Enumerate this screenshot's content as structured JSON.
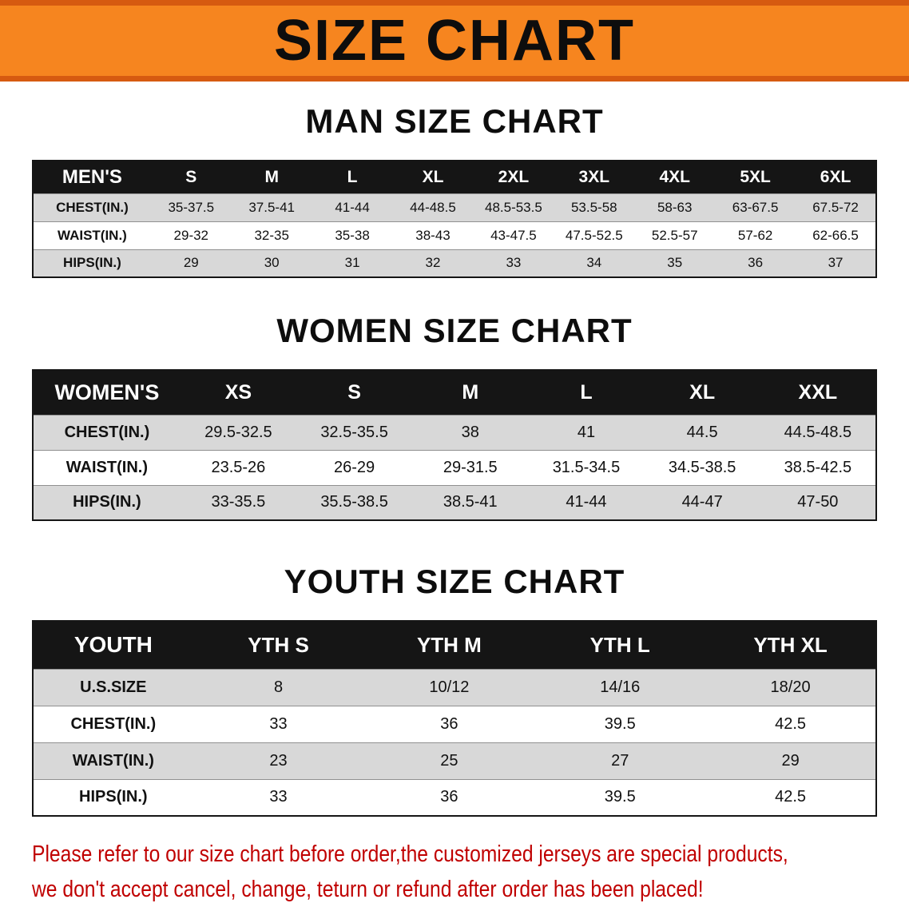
{
  "banner": {
    "title": "SIZE CHART"
  },
  "sections": [
    {
      "id": "men",
      "heading": "MAN SIZE CHART",
      "table": {
        "header": [
          "MEN'S",
          "S",
          "M",
          "L",
          "XL",
          "2XL",
          "3XL",
          "4XL",
          "5XL",
          "6XL"
        ],
        "rows": [
          [
            "CHEST(IN.)",
            "35-37.5",
            "37.5-41",
            "41-44",
            "44-48.5",
            "48.5-53.5",
            "53.5-58",
            "58-63",
            "63-67.5",
            "67.5-72"
          ],
          [
            "WAIST(IN.)",
            "29-32",
            "32-35",
            "35-38",
            "38-43",
            "43-47.5",
            "47.5-52.5",
            "52.5-57",
            "57-62",
            "62-66.5"
          ],
          [
            "HIPS(IN.)",
            "29",
            "30",
            "31",
            "32",
            "33",
            "34",
            "35",
            "36",
            "37"
          ]
        ]
      }
    },
    {
      "id": "women",
      "heading": "WOMEN SIZE CHART",
      "table": {
        "header": [
          "WOMEN'S",
          "XS",
          "S",
          "M",
          "L",
          "XL",
          "XXL"
        ],
        "rows": [
          [
            "CHEST(IN.)",
            "29.5-32.5",
            "32.5-35.5",
            "38",
            "41",
            "44.5",
            "44.5-48.5"
          ],
          [
            "WAIST(IN.)",
            "23.5-26",
            "26-29",
            "29-31.5",
            "31.5-34.5",
            "34.5-38.5",
            "38.5-42.5"
          ],
          [
            "HIPS(IN.)",
            "33-35.5",
            "35.5-38.5",
            "38.5-41",
            "41-44",
            "44-47",
            "47-50"
          ]
        ]
      }
    },
    {
      "id": "youth",
      "heading": "YOUTH SIZE CHART",
      "table": {
        "header": [
          "YOUTH",
          "YTH S",
          "YTH M",
          "YTH L",
          "YTH XL"
        ],
        "rows": [
          [
            "U.S.SIZE",
            "8",
            "10/12",
            "14/16",
            "18/20"
          ],
          [
            "CHEST(IN.)",
            "33",
            "36",
            "39.5",
            "42.5"
          ],
          [
            "WAIST(IN.)",
            "23",
            "25",
            "27",
            "29"
          ],
          [
            "HIPS(IN.)",
            "33",
            "36",
            "39.5",
            "42.5"
          ]
        ]
      }
    }
  ],
  "footer": {
    "line1": "Please refer to our size chart before order,the customized jerseys are special products,",
    "line2": "we don't accept cancel, change, teturn or refund after order has been placed!"
  },
  "colors": {
    "banner_orange": "#f6851f",
    "banner_edge": "#d65a10",
    "header_black": "#151515",
    "row_gray": "#d8d8d8",
    "footer_red": "#c00000"
  }
}
